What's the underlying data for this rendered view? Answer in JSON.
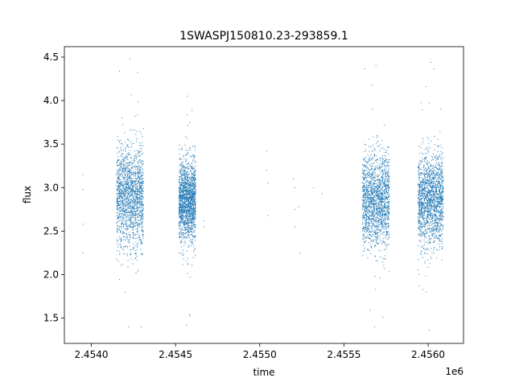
{
  "chart_data": {
    "type": "scatter",
    "title": "1SWASPJ150810.23-293859.1",
    "xlabel": "time",
    "ylabel": "flux",
    "x_offset_label": "1e6",
    "xlim": [
      2.45384,
      2.45621
    ],
    "ylim": [
      1.21,
      4.62
    ],
    "x_ticks": [
      2.454,
      2.4545,
      2.455,
      2.4555,
      2.456
    ],
    "x_tick_labels": [
      "2.4540",
      "2.4545",
      "2.4550",
      "2.4555",
      "2.4560"
    ],
    "y_ticks": [
      1.5,
      2.0,
      2.5,
      3.0,
      3.5,
      4.0,
      4.5
    ],
    "y_tick_labels": [
      "1.5",
      "2.0",
      "2.5",
      "3.0",
      "3.5",
      "4.0",
      "4.5"
    ],
    "marker_color": "#1f77b4",
    "marker": "small dot",
    "grid": false,
    "legend": "none",
    "series": [
      {
        "observing_seasons": [
          {
            "x_range": [
              2.45415,
              2.45431
            ],
            "flux_center": 2.9,
            "flux_core_range": [
              2.3,
              3.4
            ],
            "flux_extremes": [
              1.4,
              4.48
            ]
          },
          {
            "x_range": [
              2.45452,
              2.45462
            ],
            "flux_center": 2.85,
            "flux_core_range": [
              2.4,
              3.3
            ],
            "flux_extremes": [
              1.42,
              4.05
            ]
          },
          {
            "x_range": [
              2.45561,
              2.45577
            ],
            "flux_center": 2.85,
            "flux_core_range": [
              2.3,
              3.35
            ],
            "flux_extremes": [
              1.4,
              4.4
            ]
          },
          {
            "x_range": [
              2.45594,
              2.45609
            ],
            "flux_center": 2.85,
            "flux_core_range": [
              2.3,
              3.35
            ],
            "flux_extremes": [
              1.36,
              4.44
            ]
          }
        ],
        "sparse_points": [
          [
            2.45395,
            3.15
          ],
          [
            2.45395,
            2.98
          ],
          [
            2.45395,
            2.58
          ],
          [
            2.45395,
            2.25
          ],
          [
            2.45467,
            2.62
          ],
          [
            2.45467,
            2.55
          ],
          [
            2.45504,
            3.42
          ],
          [
            2.45504,
            3.2
          ],
          [
            2.45505,
            3.05
          ],
          [
            2.45505,
            2.68
          ],
          [
            2.4552,
            3.1
          ],
          [
            2.45521,
            3.0
          ],
          [
            2.45521,
            2.75
          ],
          [
            2.45521,
            2.55
          ],
          [
            2.45523,
            2.78
          ],
          [
            2.45524,
            2.25
          ],
          [
            2.45532,
            3.0
          ],
          [
            2.45537,
            2.93
          ]
        ]
      }
    ]
  }
}
